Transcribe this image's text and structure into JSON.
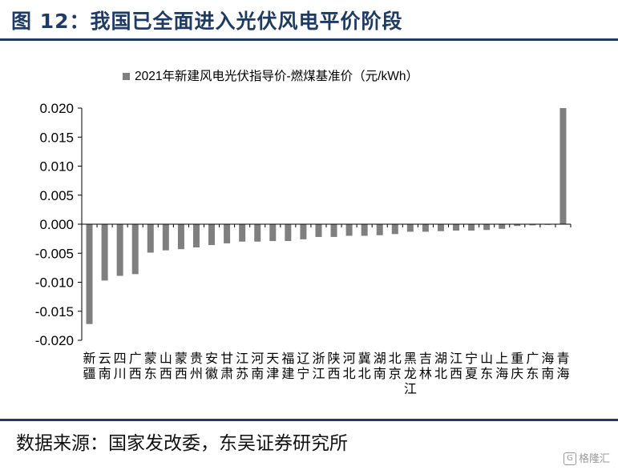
{
  "header": {
    "title": "图 12：我国已全面进入光伏风电平价阶段"
  },
  "footer": {
    "source": "数据来源：国家发改委，东吴证券研究所",
    "watermark": "格隆汇"
  },
  "colors": {
    "bar": "#7f7f7f",
    "title": "#1f3b63",
    "axis": "#000000"
  },
  "chart_data": {
    "type": "bar",
    "title": "",
    "xlabel": "",
    "ylabel": "",
    "legend": {
      "label": "2021年新建风电光伏指导价-燃煤基准价（元/kWh）",
      "position": "top"
    },
    "ylim": [
      -0.02,
      0.02
    ],
    "yticks": [
      "0.020",
      "0.015",
      "0.010",
      "0.005",
      "0.000",
      "-0.005",
      "-0.010",
      "-0.015",
      "-0.020"
    ],
    "ytick_values": [
      0.02,
      0.015,
      0.01,
      0.005,
      0,
      -0.005,
      -0.01,
      -0.015,
      -0.02
    ],
    "grid": false,
    "categories": [
      "新疆",
      "云南",
      "四川",
      "广西",
      "蒙东",
      "山西",
      "蒙西",
      "贵州",
      "安徽",
      "甘肃",
      "江苏",
      "河南",
      "天津",
      "福建",
      "辽宁",
      "浙江",
      "陕西",
      "河北",
      "冀北",
      "湖南",
      "北京",
      "黑龙江",
      "吉林",
      "湖北",
      "江西",
      "宁夏",
      "山东",
      "上海",
      "重庆",
      "广东",
      "海南",
      "青海"
    ],
    "series": [
      {
        "name": "2021年新建风电光伏指导价-燃煤基准价（元/kWh）",
        "values": [
          -0.0172,
          -0.0097,
          -0.0089,
          -0.0086,
          -0.0049,
          -0.0045,
          -0.0043,
          -0.004,
          -0.0036,
          -0.0033,
          -0.003,
          -0.003,
          -0.0029,
          -0.0029,
          -0.0026,
          -0.0022,
          -0.0022,
          -0.002,
          -0.002,
          -0.0019,
          -0.0017,
          -0.0013,
          -0.0013,
          -0.0012,
          -0.0011,
          -0.0011,
          -0.001,
          -0.0008,
          -0.0003,
          -0.0002,
          -0.0001,
          0.02
        ]
      }
    ]
  }
}
